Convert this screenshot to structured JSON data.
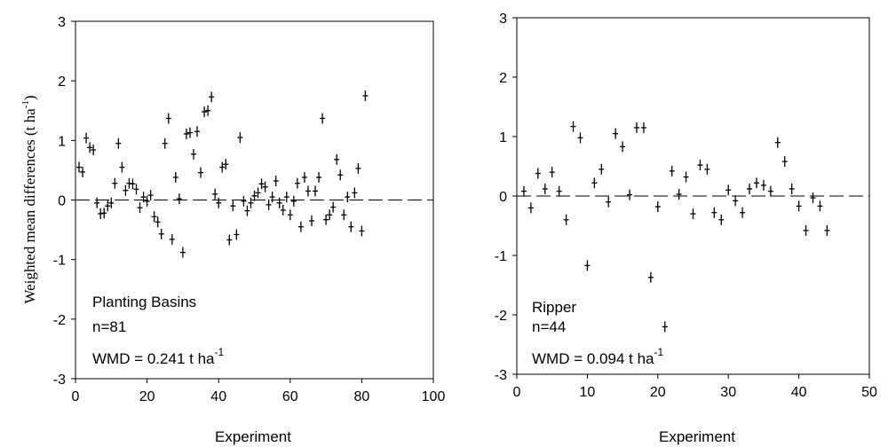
{
  "chart_data": [
    {
      "type": "scatter",
      "title": "",
      "xlabel": "Experiment",
      "ylabel": "Weighted mean differences (t ha",
      "ylabel_sup": "-1",
      "ylabel_end": ")",
      "xlim": [
        0,
        100
      ],
      "ylim": [
        -3,
        3
      ],
      "xticks": [
        0,
        20,
        40,
        60,
        80,
        100
      ],
      "yticks": [
        -3,
        -2,
        -1,
        0,
        1,
        2,
        3
      ],
      "reference_line": {
        "y": 0,
        "style": "dashed"
      },
      "grid": false,
      "annotations": [
        {
          "text": "Planting Basins"
        },
        {
          "text": "n=81"
        },
        {
          "text": "WMD = 0.241 t ha",
          "sup": "-1"
        }
      ],
      "series": [
        {
          "marker": "+",
          "x": [
            1,
            2,
            3,
            4,
            5,
            6,
            7,
            8,
            9,
            10,
            11,
            12,
            13,
            14,
            15,
            16,
            17,
            18,
            19,
            20,
            21,
            22,
            23,
            24,
            25,
            26,
            27,
            28,
            29,
            30,
            31,
            32,
            33,
            34,
            35,
            36,
            37,
            38,
            39,
            40,
            41,
            42,
            43,
            44,
            45,
            46,
            47,
            48,
            49,
            50,
            51,
            52,
            53,
            54,
            55,
            56,
            57,
            58,
            59,
            60,
            61,
            62,
            63,
            64,
            65,
            66,
            67,
            68,
            69,
            70,
            71,
            72,
            73,
            74,
            75,
            76,
            77,
            78,
            79,
            80,
            81
          ],
          "y": [
            0.55,
            0.47,
            1.04,
            0.88,
            0.84,
            -0.05,
            -0.23,
            -0.22,
            -0.1,
            -0.05,
            0.28,
            0.95,
            0.55,
            0.16,
            0.28,
            0.27,
            0.18,
            -0.13,
            0.05,
            -0.02,
            0.08,
            -0.28,
            -0.37,
            -0.57,
            0.95,
            1.37,
            -0.66,
            0.38,
            0.02,
            -0.88,
            1.11,
            1.13,
            0.77,
            1.15,
            0.46,
            1.48,
            1.5,
            1.73,
            0.1,
            -0.05,
            0.55,
            0.6,
            -0.67,
            -0.1,
            -0.58,
            1.05,
            -0.02,
            -0.18,
            -0.05,
            0.07,
            0.12,
            0.27,
            0.22,
            -0.08,
            0.05,
            0.32,
            -0.05,
            -0.17,
            0.05,
            -0.25,
            -0.02,
            0.28,
            -0.45,
            0.38,
            0.15,
            -0.35,
            0.15,
            0.38,
            1.37,
            -0.33,
            -0.25,
            -0.12,
            0.68,
            0.42,
            -0.25,
            0.05,
            -0.45,
            0.12,
            0.53,
            -0.52,
            1.75
          ]
        }
      ]
    },
    {
      "type": "scatter",
      "title": "",
      "xlabel": "Experiment",
      "ylabel": "",
      "xlim": [
        0,
        50
      ],
      "ylim": [
        -3,
        3
      ],
      "xticks": [
        0,
        10,
        20,
        30,
        40,
        50
      ],
      "yticks": [
        -3,
        -2,
        -1,
        0,
        1,
        2,
        3
      ],
      "reference_line": {
        "y": 0,
        "style": "dashed"
      },
      "grid": false,
      "annotations": [
        {
          "text": "Ripper"
        },
        {
          "text": "n=44"
        },
        {
          "text": "WMD = 0.094 t ha",
          "sup": "-1"
        }
      ],
      "series": [
        {
          "marker": "+",
          "x": [
            1,
            2,
            3,
            4,
            5,
            6,
            7,
            8,
            9,
            10,
            11,
            12,
            13,
            14,
            15,
            16,
            17,
            18,
            19,
            20,
            21,
            22,
            23,
            24,
            25,
            26,
            27,
            28,
            29,
            30,
            31,
            32,
            33,
            34,
            35,
            36,
            37,
            38,
            39,
            40,
            41,
            42,
            43,
            44
          ],
          "y": [
            0.08,
            -0.2,
            0.38,
            0.12,
            0.4,
            0.08,
            -0.4,
            1.17,
            0.98,
            -1.17,
            0.22,
            0.45,
            -0.1,
            1.05,
            0.83,
            0.02,
            1.15,
            1.15,
            -1.37,
            -0.18,
            -2.2,
            0.42,
            0.03,
            0.32,
            -0.3,
            0.52,
            0.45,
            -0.28,
            -0.4,
            0.1,
            -0.08,
            -0.28,
            0.12,
            0.22,
            0.18,
            0.08,
            0.9,
            0.58,
            0.12,
            -0.17,
            -0.58,
            -0.03,
            -0.17,
            -0.58
          ]
        }
      ]
    }
  ]
}
